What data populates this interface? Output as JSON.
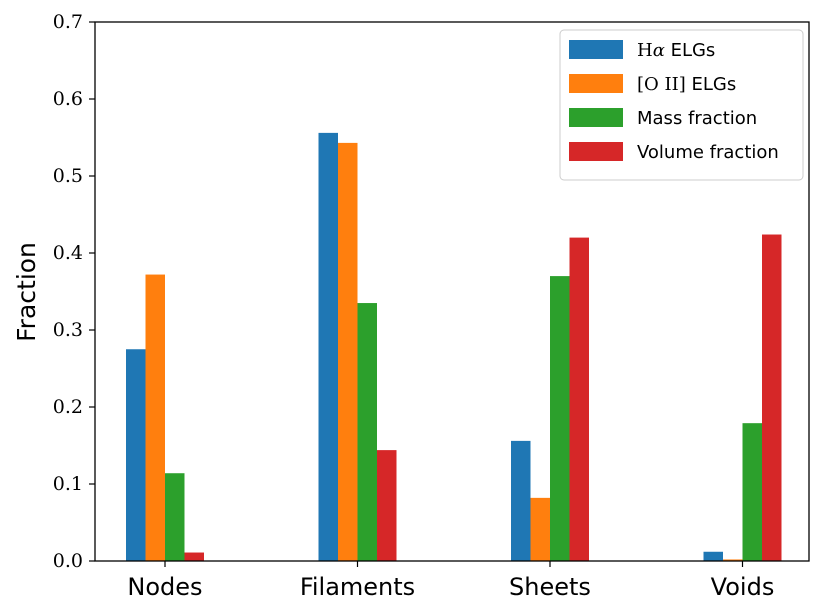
{
  "chart_data": {
    "type": "bar",
    "title": "",
    "xlabel": "",
    "ylabel": "Fraction",
    "ylim": [
      0,
      0.7
    ],
    "yticks": [
      "0.0",
      "0.1",
      "0.2",
      "0.3",
      "0.4",
      "0.5",
      "0.6",
      "0.7"
    ],
    "categories": [
      "Nodes",
      "Filaments",
      "Sheets",
      "Voids"
    ],
    "grid": false,
    "legend_position": "top-right",
    "series": [
      {
        "name": "Hα ELGs",
        "legend_main": "H",
        "legend_greek": "α",
        "legend_tail": " ELGs",
        "color": "#1f77b4",
        "values": [
          0.275,
          0.556,
          0.156,
          0.012
        ]
      },
      {
        "name": "[O II] ELGs",
        "legend_main": "[O II]",
        "legend_greek": "",
        "legend_tail": " ELGs",
        "color": "#ff7f0e",
        "values": [
          0.372,
          0.543,
          0.082,
          0.002
        ]
      },
      {
        "name": "Mass fraction",
        "legend_main": "",
        "legend_greek": "",
        "legend_tail": "Mass fraction",
        "color": "#2ca02c",
        "values": [
          0.114,
          0.335,
          0.37,
          0.179
        ]
      },
      {
        "name": "Volume fraction",
        "legend_main": "",
        "legend_greek": "",
        "legend_tail": "Volume fraction",
        "color": "#d62728",
        "values": [
          0.011,
          0.144,
          0.42,
          0.424
        ]
      }
    ]
  }
}
